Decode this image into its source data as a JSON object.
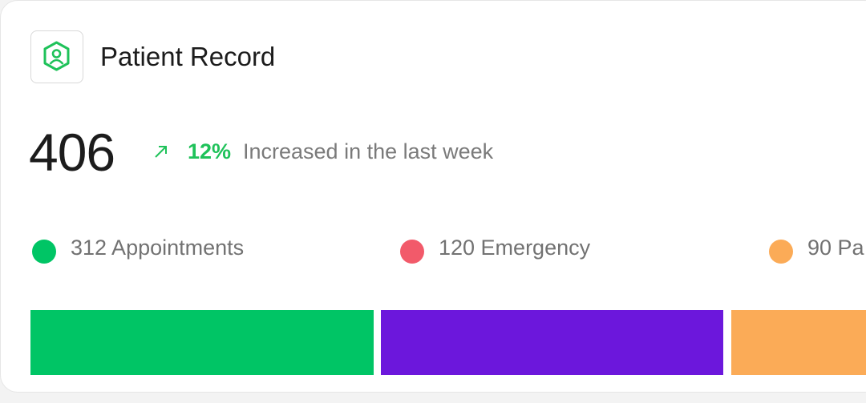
{
  "header": {
    "title": "Patient Record"
  },
  "summary": {
    "total": "406",
    "change": "12%",
    "change_note": "Increased in the last week"
  },
  "legend": [
    {
      "label": "312 Appointments",
      "color": "#00c565"
    },
    {
      "label": "120 Emergency",
      "color": "#f25a6a"
    },
    {
      "label": "90 Pa",
      "color": "#fbab57"
    }
  ],
  "bar_colors": [
    "#00c565",
    "#6c17dc",
    "#fbab57"
  ]
}
